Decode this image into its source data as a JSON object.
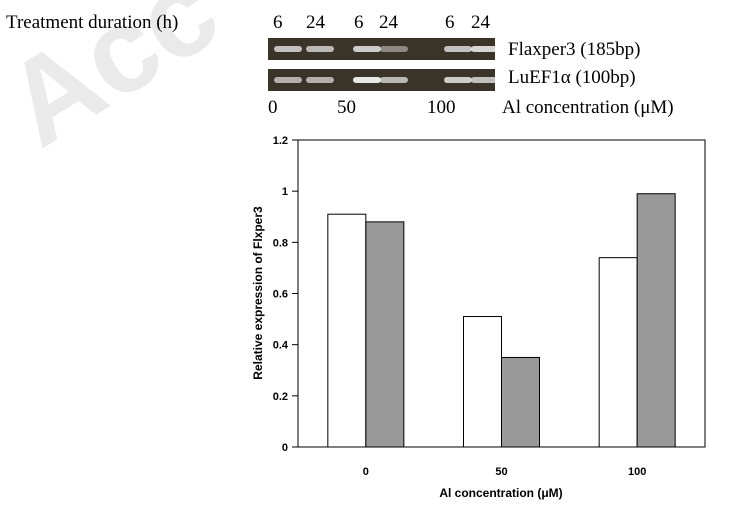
{
  "watermark": {
    "text": "Acc"
  },
  "gel": {
    "duration_label": "Treatment duration (h)",
    "duration_ticks": [
      "6",
      "24",
      "6",
      "24",
      "6",
      "24"
    ],
    "bands": [
      {
        "label": "Flaxper3 (185bp)",
        "intensities": [
          0.75,
          0.7,
          0.8,
          0.45,
          0.75,
          0.85
        ]
      },
      {
        "label": "LuEF1α (100bp)",
        "intensities": [
          0.65,
          0.65,
          0.95,
          0.7,
          0.8,
          0.75
        ]
      }
    ],
    "conc_ticks": [
      "0",
      "50",
      "100"
    ],
    "conc_label": "Al concentration (μM)"
  },
  "colors": {
    "series_6h": "#ffffff",
    "series_24h": "#999999",
    "axis": "#000000",
    "gel_bg": "#3a3328",
    "band": "#f2f2f2"
  },
  "chart_data": {
    "type": "bar",
    "categories": [
      "0",
      "50",
      "100"
    ],
    "series": [
      {
        "values": [
          0.91,
          0.51,
          0.74
        ]
      },
      {
        "values": [
          0.88,
          0.35,
          0.99
        ]
      }
    ],
    "xlabel": "Al concentration (μM)",
    "ylabel": "Relative expression of Flxper3",
    "ylim": [
      0,
      1.2
    ],
    "yticks": [
      "0",
      "0.2",
      "0.4",
      "0.6",
      "0.8",
      "1",
      "1.2"
    ],
    "grid": false,
    "legend": "none"
  }
}
